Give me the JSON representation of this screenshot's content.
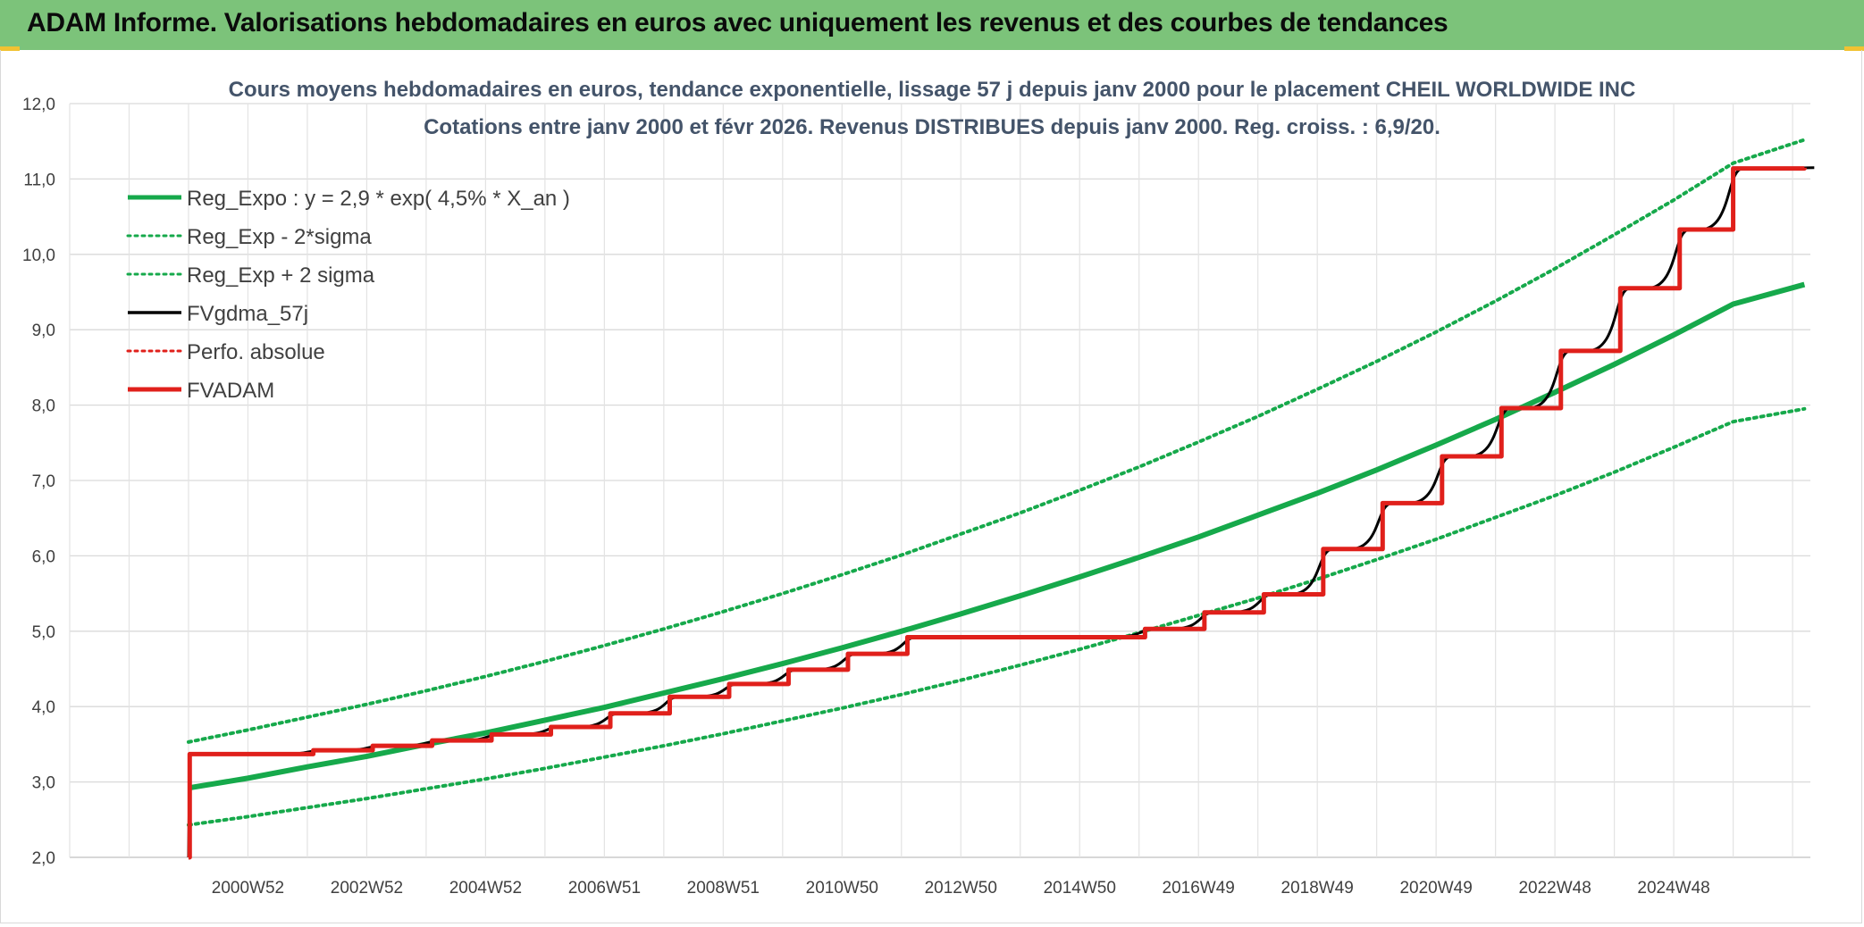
{
  "banner": {
    "title": "ADAM Informe. Valorisations hebdomadaires en euros avec uniquement les revenus et des courbes de tendances"
  },
  "chart_data": {
    "type": "line",
    "title": "Cours moyens hebdomadaires en euros, tendance exponentielle, lissage 57 j depuis janv 2000 pour le placement CHEIL WORLDWIDE INC",
    "subtitle": "Cotations entre janv 2000 et févr 2026. Revenus DISTRIBUES depuis janv 2000. Reg. croiss. : 6,9/20.",
    "xlabel": "",
    "ylabel": "",
    "ylim": [
      2.0,
      12.0
    ],
    "y_ticks": [
      "2,0",
      "3,0",
      "4,0",
      "5,0",
      "6,0",
      "7,0",
      "8,0",
      "9,0",
      "10,0",
      "11,0",
      "12,0"
    ],
    "xlim": [
      1997,
      2026.3
    ],
    "x_ticks": [
      {
        "label": "2000W52",
        "x": 2000
      },
      {
        "label": "2002W52",
        "x": 2002
      },
      {
        "label": "2004W52",
        "x": 2004
      },
      {
        "label": "2006W51",
        "x": 2006
      },
      {
        "label": "2008W51",
        "x": 2008
      },
      {
        "label": "2010W50",
        "x": 2010
      },
      {
        "label": "2012W50",
        "x": 2012
      },
      {
        "label": "2014W50",
        "x": 2014
      },
      {
        "label": "2016W49",
        "x": 2016
      },
      {
        "label": "2018W49",
        "x": 2018
      },
      {
        "label": "2020W49",
        "x": 2020
      },
      {
        "label": "2022W48",
        "x": 2022
      },
      {
        "label": "2024W48",
        "x": 2024
      }
    ],
    "grid": true,
    "legend_position": "top-left",
    "series": [
      {
        "name": "Reg_Expo : y = 2,9 * exp( 4,5% *  X_an )",
        "color": "#16a94b",
        "style": "solid",
        "width": 6,
        "x": [
          1999,
          2000,
          2001,
          2002,
          2003,
          2004,
          2005,
          2006,
          2007,
          2008,
          2009,
          2010,
          2011,
          2012,
          2013,
          2014,
          2015,
          2016,
          2017,
          2018,
          2019,
          2020,
          2021,
          2022,
          2023,
          2024,
          2025,
          2026.2
        ],
        "y": [
          2.92,
          3.05,
          3.2,
          3.34,
          3.5,
          3.65,
          3.82,
          3.99,
          4.18,
          4.37,
          4.57,
          4.78,
          5.0,
          5.23,
          5.47,
          5.72,
          5.98,
          6.25,
          6.54,
          6.83,
          7.14,
          7.47,
          7.81,
          8.17,
          8.54,
          8.93,
          9.34,
          9.6
        ]
      },
      {
        "name": "Reg_Exp - 2*sigma",
        "color": "#16a94b",
        "style": "dotted",
        "width": 4,
        "x": [
          1999,
          2000,
          2001,
          2002,
          2003,
          2004,
          2005,
          2006,
          2007,
          2008,
          2009,
          2010,
          2011,
          2012,
          2013,
          2014,
          2015,
          2016,
          2017,
          2018,
          2019,
          2020,
          2021,
          2022,
          2023,
          2024,
          2025,
          2026.2
        ],
        "y": [
          2.43,
          2.54,
          2.66,
          2.78,
          2.91,
          3.04,
          3.18,
          3.33,
          3.48,
          3.64,
          3.81,
          3.98,
          4.16,
          4.35,
          4.55,
          4.76,
          4.98,
          5.21,
          5.44,
          5.69,
          5.95,
          6.22,
          6.51,
          6.8,
          7.11,
          7.44,
          7.78,
          7.95
        ]
      },
      {
        "name": "Reg_Exp + 2 sigma",
        "color": "#16a94b",
        "style": "dotted",
        "width": 4,
        "x": [
          1999,
          2000,
          2001,
          2002,
          2003,
          2004,
          2005,
          2006,
          2007,
          2008,
          2009,
          2010,
          2011,
          2012,
          2013,
          2014,
          2015,
          2016,
          2017,
          2018,
          2019,
          2020,
          2021,
          2022,
          2023,
          2024,
          2025,
          2026.2
        ],
        "y": [
          3.53,
          3.69,
          3.86,
          4.03,
          4.21,
          4.4,
          4.6,
          4.81,
          5.03,
          5.26,
          5.5,
          5.75,
          6.01,
          6.29,
          6.57,
          6.87,
          7.18,
          7.51,
          7.85,
          8.21,
          8.58,
          8.97,
          9.38,
          9.81,
          10.26,
          10.72,
          11.21,
          11.52
        ]
      },
      {
        "name": "FVgdma_57j",
        "color": "#000000",
        "style": "solid",
        "width": 3,
        "x": [
          1999,
          1999.02,
          2001.1,
          2002.1,
          2003.1,
          2004.1,
          2005.1,
          2006.1,
          2007.1,
          2008.1,
          2009.1,
          2010.1,
          2011.1,
          2015.1,
          2016.1,
          2017.1,
          2018.1,
          2019.1,
          2020.1,
          2021.1,
          2022.1,
          2023.1,
          2024.1,
          2025,
          2026.2
        ],
        "y": [
          2.0,
          3.37,
          3.42,
          3.48,
          3.55,
          3.63,
          3.73,
          3.91,
          4.13,
          4.3,
          4.49,
          4.7,
          4.92,
          5.03,
          5.25,
          5.49,
          6.09,
          6.7,
          7.32,
          7.96,
          8.72,
          9.55,
          10.33,
          11.14,
          11.15
        ]
      },
      {
        "name": "Perfo. absolue",
        "color": "#e0201b",
        "style": "dotted",
        "width": 3,
        "x": [],
        "y": []
      },
      {
        "name": "FVADAM",
        "color": "#e0201b",
        "style": "step",
        "width": 5,
        "x": [
          1999,
          1999.02,
          2001.1,
          2002.1,
          2003.1,
          2004.1,
          2005.1,
          2006.1,
          2007.1,
          2008.1,
          2009.1,
          2010.1,
          2011.1,
          2015.1,
          2016.1,
          2017.1,
          2018.1,
          2019.1,
          2020.1,
          2021.1,
          2022.1,
          2023.1,
          2024.1,
          2025,
          2026.2
        ],
        "y": [
          2.0,
          3.37,
          3.42,
          3.48,
          3.55,
          3.63,
          3.73,
          3.91,
          4.13,
          4.3,
          4.49,
          4.7,
          4.92,
          5.03,
          5.25,
          5.49,
          6.09,
          6.7,
          7.32,
          7.96,
          8.72,
          9.55,
          10.33,
          11.14,
          11.15
        ]
      }
    ]
  }
}
